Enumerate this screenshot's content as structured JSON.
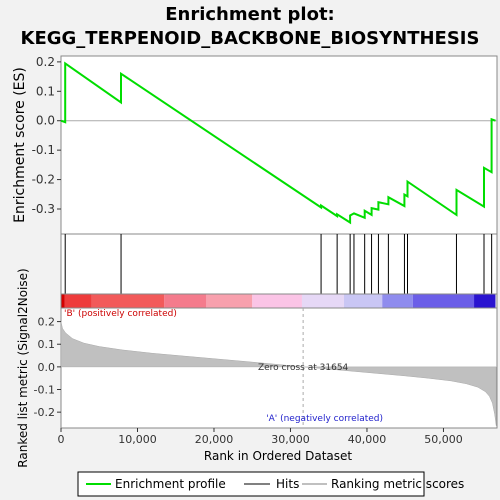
{
  "chart_data": {
    "type": "line",
    "title_line1": "Enrichment plot:",
    "title_line2": "KEGG_TERPENOID_BACKBONE_BIOSYNTHESIS",
    "es_ylabel": "Enrichment score (ES)",
    "metric_ylabel": "Ranked list metric (Signal2Noise)",
    "xlabel": "Rank in Ordered Dataset",
    "x_range": [
      0,
      57000
    ],
    "es_ylim": [
      -0.385,
      0.22
    ],
    "metric_ylim": [
      -0.27,
      0.26
    ],
    "es_yticks": [
      "0.2",
      "0.1",
      "0.0",
      "-0.1",
      "-0.2",
      "-0.3"
    ],
    "es_ytick_values": [
      0.2,
      0.1,
      0.0,
      -0.1,
      -0.2,
      -0.3
    ],
    "metric_yticks": [
      "0.2",
      "0.1",
      "0.0",
      "-0.1",
      "-0.2"
    ],
    "metric_ytick_values": [
      0.2,
      0.1,
      0.0,
      -0.1,
      -0.2
    ],
    "xticks": [
      "0",
      "10,000",
      "20,000",
      "30,000",
      "40,000",
      "50,000"
    ],
    "xtick_values": [
      0,
      10000,
      20000,
      30000,
      40000,
      50000
    ],
    "hits": [
      550,
      7850,
      34000,
      36100,
      37800,
      38300,
      39700,
      40600,
      41500,
      42800,
      44900,
      45300,
      51700,
      55300,
      56300
    ],
    "enrichment_profile": {
      "x": [
        0,
        550,
        550,
        7850,
        7850,
        34000,
        34000,
        36100,
        36100,
        37800,
        37800,
        38300,
        38300,
        39700,
        39700,
        40600,
        40600,
        41500,
        41500,
        42800,
        42800,
        44900,
        44900,
        45300,
        45300,
        51700,
        51700,
        55300,
        55300,
        56300,
        56300,
        56800
      ],
      "y": [
        0.0,
        -0.005,
        0.195,
        0.062,
        0.16,
        -0.295,
        -0.288,
        -0.324,
        -0.318,
        -0.346,
        -0.322,
        -0.315,
        -0.315,
        -0.33,
        -0.306,
        -0.32,
        -0.297,
        -0.302,
        -0.277,
        -0.284,
        -0.26,
        -0.29,
        -0.251,
        -0.257,
        -0.207,
        -0.32,
        -0.235,
        -0.292,
        -0.16,
        -0.175,
        0.005,
        0.0
      ]
    },
    "metric_curve": {
      "x": [
        0,
        200,
        600,
        1500,
        3000,
        5000,
        8000,
        12000,
        16000,
        20000,
        24000,
        28000,
        31654,
        35000,
        40000,
        45000,
        48000,
        51000,
        53000,
        54500,
        55500,
        56000,
        56400,
        56700,
        56900
      ],
      "y": [
        0.2,
        0.17,
        0.15,
        0.125,
        0.105,
        0.09,
        0.075,
        0.06,
        0.048,
        0.036,
        0.024,
        0.012,
        0.0,
        -0.01,
        -0.025,
        -0.04,
        -0.05,
        -0.062,
        -0.075,
        -0.09,
        -0.11,
        -0.13,
        -0.16,
        -0.21,
        -0.26
      ]
    },
    "zero_cross_rank": 31654,
    "zero_cross_text": "Zero cross at 31654",
    "pos_label": "'B' (positively correlated)",
    "neg_label": "'A' (negatively correlated)",
    "heat_segments": [
      {
        "to": 500,
        "color": "#d40000"
      },
      {
        "to": 4000,
        "color": "#ee3b3b"
      },
      {
        "to": 13500,
        "color": "#f25a5a"
      },
      {
        "to": 19000,
        "color": "#f47b8c"
      },
      {
        "to": 25000,
        "color": "#f8a0ad"
      },
      {
        "to": 31500,
        "color": "#fbc4e6"
      },
      {
        "to": 37000,
        "color": "#e6d8f6"
      },
      {
        "to": 42000,
        "color": "#c9c6f4"
      },
      {
        "to": 46000,
        "color": "#8f8cee"
      },
      {
        "to": 54000,
        "color": "#6b5ee8"
      },
      {
        "to": 56800,
        "color": "#2a14d0"
      }
    ],
    "colors": {
      "background": "#f2f2f2",
      "plot_bg": "#ffffff",
      "profile": "#00dd00",
      "hit": "#000000",
      "metric_fill": "#c0c0c0",
      "pos_text": "#cc0000",
      "neg_text": "#2222cc",
      "zero_line": "#aaaaaa"
    },
    "legend": {
      "position": "bottom",
      "entries": [
        {
          "label": "Enrichment profile",
          "color": "#00dd00",
          "kind": "profile"
        },
        {
          "label": "Hits",
          "color": "#000000",
          "kind": "hit"
        },
        {
          "label": "Ranking metric scores",
          "color": "#c0c0c0",
          "kind": "metric"
        }
      ]
    }
  }
}
